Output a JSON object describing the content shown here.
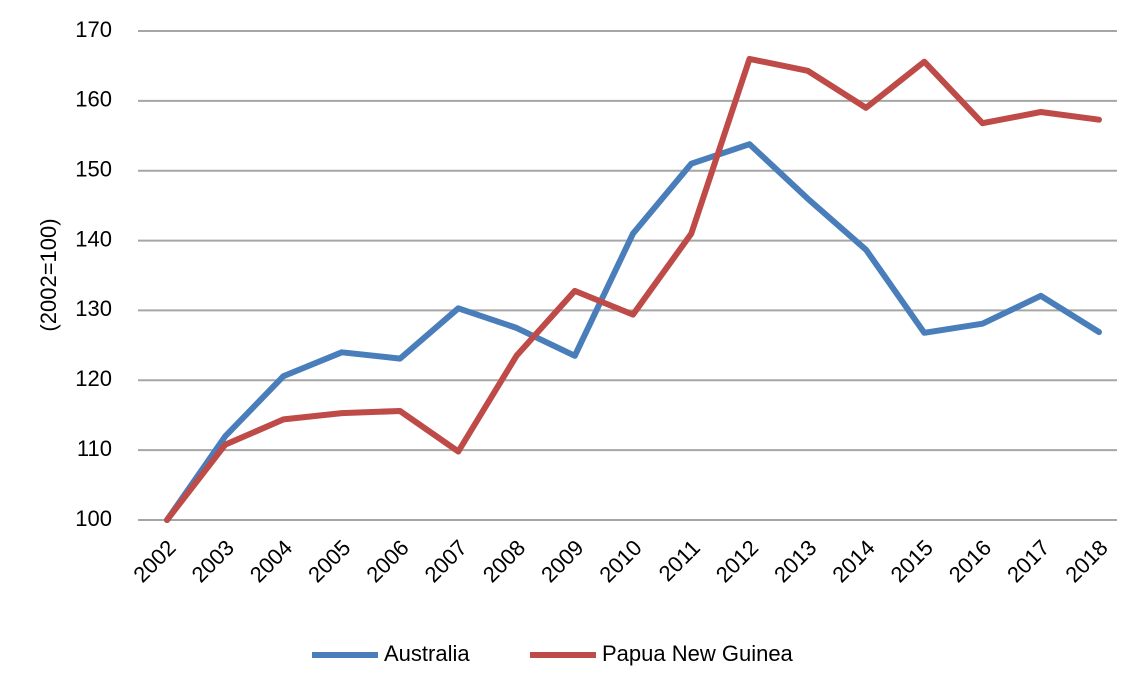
{
  "chart_data": {
    "type": "line",
    "title": "",
    "xlabel": "",
    "ylabel": "(2002=100)",
    "ylim": [
      100,
      170
    ],
    "yticks": [
      100,
      110,
      120,
      130,
      140,
      150,
      160,
      170
    ],
    "grid": "horizontal",
    "legend_position": "bottom",
    "categories": [
      "2002",
      "2003",
      "2004",
      "2005",
      "2006",
      "2007",
      "2008",
      "2009",
      "2010",
      "2011",
      "2012",
      "2013",
      "2014",
      "2015",
      "2016",
      "2017",
      "2018"
    ],
    "series": [
      {
        "name": "Australia",
        "color": "#4a7ebb",
        "values": [
          100,
          112,
          120.6,
          124,
          123.1,
          130.3,
          127.5,
          123.5,
          141,
          151,
          153.8,
          146,
          138.7,
          126.8,
          128.1,
          132.1,
          126.9
        ]
      },
      {
        "name": "Papua New Guinea",
        "color": "#be4b48",
        "values": [
          100,
          110.8,
          114.4,
          115.3,
          115.6,
          109.8,
          123.5,
          132.8,
          129.4,
          141,
          166,
          164.3,
          159,
          165.6,
          156.8,
          158.4,
          157.3
        ]
      }
    ]
  }
}
